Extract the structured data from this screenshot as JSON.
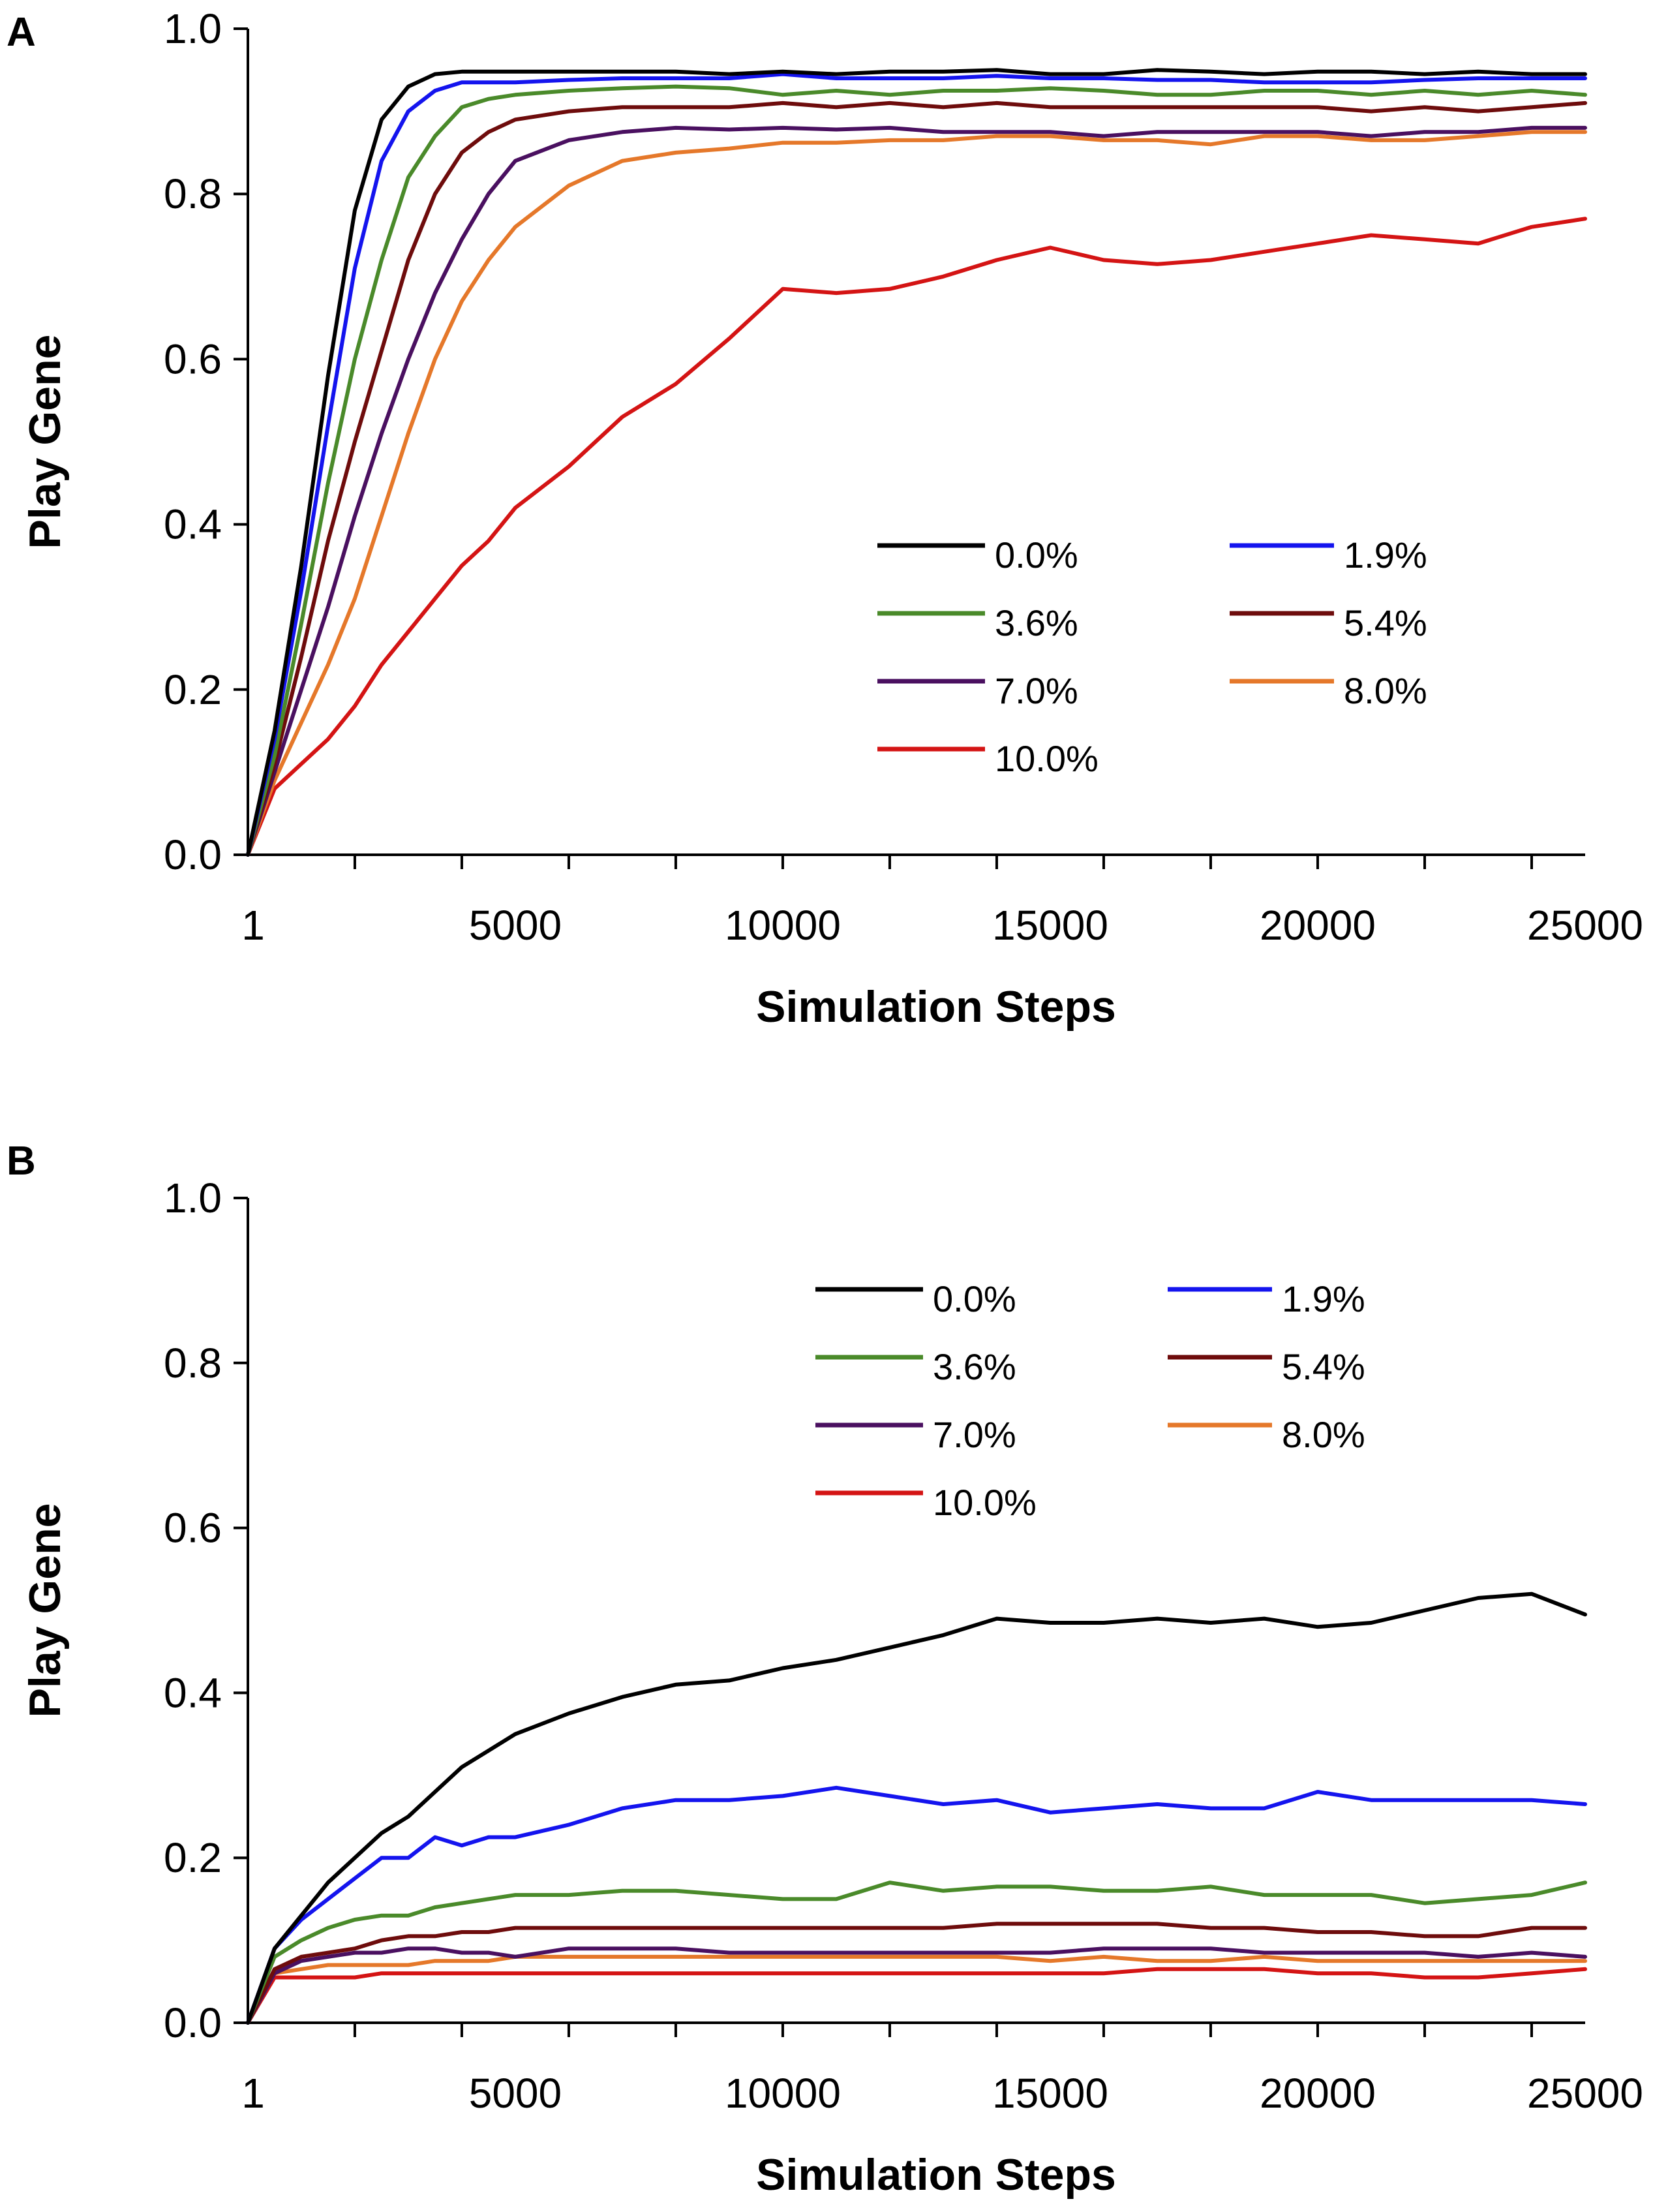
{
  "colors": {
    "0.0%": "#000000",
    "1.9%": "#1414ee",
    "3.6%": "#4a8a2a",
    "5.4%": "#6e0c0c",
    "7.0%": "#4a1060",
    "8.0%": "#e5782a",
    "10.0%": "#d41414"
  },
  "chart_data": [
    {
      "panel": "A",
      "type": "line",
      "xlabel": "Simulation Steps",
      "ylabel": "Play Gene",
      "xlim": [
        1,
        25000
      ],
      "ylim": [
        0,
        1
      ],
      "xticks": [
        "1",
        "5000",
        "10000",
        "15000",
        "20000",
        "25000"
      ],
      "yticks": [
        "0.0",
        "0.2",
        "0.4",
        "0.6",
        "0.8",
        "1.0"
      ],
      "legend": [
        "0.0%",
        "1.9%",
        "3.6%",
        "5.4%",
        "7.0%",
        "8.0%",
        "10.0%"
      ],
      "x": [
        1,
        500,
        1000,
        1500,
        2000,
        2500,
        3000,
        3500,
        4000,
        4500,
        5000,
        6000,
        7000,
        8000,
        9000,
        10000,
        11000,
        12000,
        13000,
        14000,
        15000,
        16000,
        17000,
        18000,
        19000,
        20000,
        21000,
        22000,
        23000,
        24000,
        25000
      ],
      "series": [
        {
          "name": "0.0%",
          "values": [
            0.0,
            0.15,
            0.35,
            0.58,
            0.78,
            0.89,
            0.93,
            0.945,
            0.948,
            0.948,
            0.948,
            0.948,
            0.948,
            0.948,
            0.945,
            0.948,
            0.945,
            0.948,
            0.948,
            0.95,
            0.945,
            0.945,
            0.95,
            0.948,
            0.945,
            0.948,
            0.948,
            0.945,
            0.948,
            0.945,
            0.945
          ]
        },
        {
          "name": "1.9%",
          "values": [
            0.0,
            0.14,
            0.32,
            0.52,
            0.71,
            0.84,
            0.9,
            0.925,
            0.935,
            0.935,
            0.935,
            0.938,
            0.94,
            0.94,
            0.94,
            0.945,
            0.94,
            0.94,
            0.94,
            0.943,
            0.94,
            0.94,
            0.938,
            0.938,
            0.935,
            0.935,
            0.935,
            0.938,
            0.94,
            0.94,
            0.94
          ]
        },
        {
          "name": "3.6%",
          "values": [
            0.0,
            0.12,
            0.28,
            0.45,
            0.6,
            0.72,
            0.82,
            0.87,
            0.905,
            0.915,
            0.92,
            0.925,
            0.928,
            0.93,
            0.928,
            0.92,
            0.925,
            0.92,
            0.925,
            0.925,
            0.928,
            0.925,
            0.92,
            0.92,
            0.925,
            0.925,
            0.92,
            0.925,
            0.92,
            0.925,
            0.92
          ]
        },
        {
          "name": "5.4%",
          "values": [
            0.0,
            0.11,
            0.24,
            0.38,
            0.5,
            0.61,
            0.72,
            0.8,
            0.85,
            0.875,
            0.89,
            0.9,
            0.905,
            0.905,
            0.905,
            0.91,
            0.905,
            0.91,
            0.905,
            0.91,
            0.905,
            0.905,
            0.905,
            0.905,
            0.905,
            0.905,
            0.9,
            0.905,
            0.9,
            0.905,
            0.91
          ]
        },
        {
          "name": "7.0%",
          "values": [
            0.0,
            0.1,
            0.2,
            0.3,
            0.41,
            0.51,
            0.6,
            0.68,
            0.745,
            0.8,
            0.84,
            0.865,
            0.875,
            0.88,
            0.878,
            0.88,
            0.878,
            0.88,
            0.875,
            0.875,
            0.875,
            0.87,
            0.875,
            0.875,
            0.875,
            0.875,
            0.87,
            0.875,
            0.875,
            0.88,
            0.88
          ]
        },
        {
          "name": "8.0%",
          "values": [
            0.0,
            0.09,
            0.16,
            0.23,
            0.31,
            0.41,
            0.51,
            0.6,
            0.67,
            0.72,
            0.76,
            0.81,
            0.84,
            0.85,
            0.855,
            0.862,
            0.862,
            0.865,
            0.865,
            0.87,
            0.87,
            0.865,
            0.865,
            0.86,
            0.87,
            0.87,
            0.865,
            0.865,
            0.87,
            0.875,
            0.875
          ]
        },
        {
          "name": "10.0%",
          "values": [
            0.0,
            0.08,
            0.11,
            0.14,
            0.18,
            0.23,
            0.27,
            0.31,
            0.35,
            0.38,
            0.42,
            0.47,
            0.53,
            0.57,
            0.625,
            0.685,
            0.68,
            0.685,
            0.7,
            0.72,
            0.735,
            0.72,
            0.715,
            0.72,
            0.73,
            0.74,
            0.75,
            0.745,
            0.74,
            0.76,
            0.77
          ]
        }
      ]
    },
    {
      "panel": "B",
      "type": "line",
      "xlabel": "Simulation Steps",
      "ylabel": "Play Gene",
      "xlim": [
        1,
        25000
      ],
      "ylim": [
        0,
        1
      ],
      "xticks": [
        "1",
        "5000",
        "10000",
        "15000",
        "20000",
        "25000"
      ],
      "yticks": [
        "0.0",
        "0.2",
        "0.4",
        "0.6",
        "0.8",
        "1.0"
      ],
      "legend": [
        "0.0%",
        "1.9%",
        "3.6%",
        "5.4%",
        "7.0%",
        "8.0%",
        "10.0%"
      ],
      "x": [
        1,
        500,
        1000,
        1500,
        2000,
        2500,
        3000,
        3500,
        4000,
        4500,
        5000,
        6000,
        7000,
        8000,
        9000,
        10000,
        11000,
        12000,
        13000,
        14000,
        15000,
        16000,
        17000,
        18000,
        19000,
        20000,
        21000,
        22000,
        23000,
        24000,
        25000
      ],
      "series": [
        {
          "name": "0.0%",
          "values": [
            0.0,
            0.09,
            0.13,
            0.17,
            0.2,
            0.23,
            0.25,
            0.28,
            0.31,
            0.33,
            0.35,
            0.375,
            0.395,
            0.41,
            0.415,
            0.43,
            0.44,
            0.455,
            0.47,
            0.49,
            0.485,
            0.485,
            0.49,
            0.485,
            0.49,
            0.48,
            0.485,
            0.5,
            0.515,
            0.52,
            0.495
          ]
        },
        {
          "name": "1.9%",
          "values": [
            0.0,
            0.09,
            0.125,
            0.15,
            0.175,
            0.2,
            0.2,
            0.225,
            0.215,
            0.225,
            0.225,
            0.24,
            0.26,
            0.27,
            0.27,
            0.275,
            0.285,
            0.275,
            0.265,
            0.27,
            0.255,
            0.26,
            0.265,
            0.26,
            0.26,
            0.28,
            0.27,
            0.27,
            0.27,
            0.27,
            0.265
          ]
        },
        {
          "name": "3.6%",
          "values": [
            0.0,
            0.08,
            0.1,
            0.115,
            0.125,
            0.13,
            0.13,
            0.14,
            0.145,
            0.15,
            0.155,
            0.155,
            0.16,
            0.16,
            0.155,
            0.15,
            0.15,
            0.17,
            0.16,
            0.165,
            0.165,
            0.16,
            0.16,
            0.165,
            0.155,
            0.155,
            0.155,
            0.145,
            0.15,
            0.155,
            0.17
          ]
        },
        {
          "name": "5.4%",
          "values": [
            0.0,
            0.065,
            0.08,
            0.085,
            0.09,
            0.1,
            0.105,
            0.105,
            0.11,
            0.11,
            0.115,
            0.115,
            0.115,
            0.115,
            0.115,
            0.115,
            0.115,
            0.115,
            0.115,
            0.12,
            0.12,
            0.12,
            0.12,
            0.115,
            0.115,
            0.11,
            0.11,
            0.105,
            0.105,
            0.115,
            0.115
          ]
        },
        {
          "name": "7.0%",
          "values": [
            0.0,
            0.06,
            0.075,
            0.08,
            0.085,
            0.085,
            0.09,
            0.09,
            0.085,
            0.085,
            0.08,
            0.09,
            0.09,
            0.09,
            0.085,
            0.085,
            0.085,
            0.085,
            0.085,
            0.085,
            0.085,
            0.09,
            0.09,
            0.09,
            0.085,
            0.085,
            0.085,
            0.085,
            0.08,
            0.085,
            0.08
          ]
        },
        {
          "name": "8.0%",
          "values": [
            0.0,
            0.06,
            0.065,
            0.07,
            0.07,
            0.07,
            0.07,
            0.075,
            0.075,
            0.075,
            0.08,
            0.08,
            0.08,
            0.08,
            0.08,
            0.08,
            0.08,
            0.08,
            0.08,
            0.08,
            0.075,
            0.08,
            0.075,
            0.075,
            0.08,
            0.075,
            0.075,
            0.075,
            0.075,
            0.075,
            0.075
          ]
        },
        {
          "name": "10.0%",
          "values": [
            0.0,
            0.055,
            0.055,
            0.055,
            0.055,
            0.06,
            0.06,
            0.06,
            0.06,
            0.06,
            0.06,
            0.06,
            0.06,
            0.06,
            0.06,
            0.06,
            0.06,
            0.06,
            0.06,
            0.06,
            0.06,
            0.06,
            0.065,
            0.065,
            0.065,
            0.06,
            0.06,
            0.055,
            0.055,
            0.06,
            0.065
          ]
        }
      ]
    }
  ]
}
